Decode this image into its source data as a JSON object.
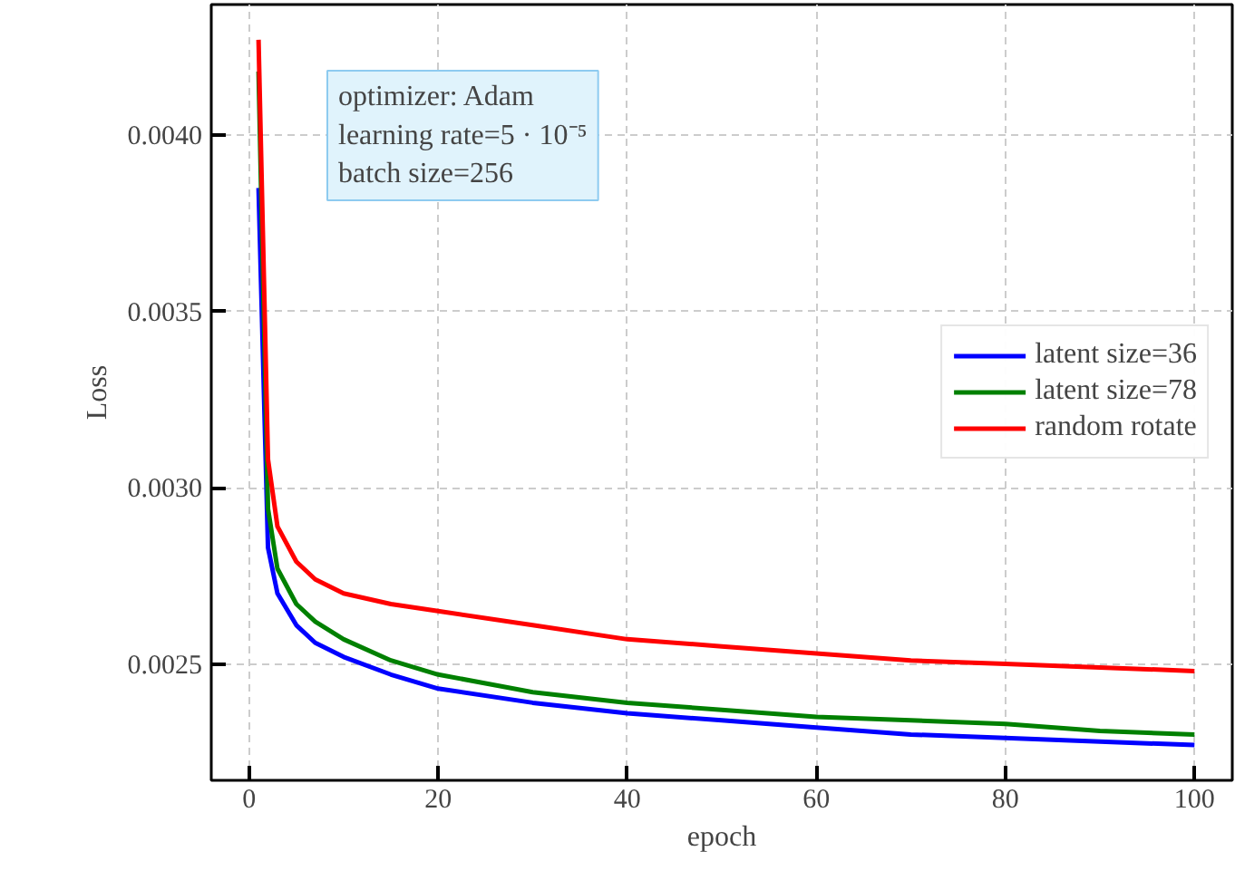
{
  "chart_data": {
    "type": "line",
    "xlabel": "epoch",
    "ylabel": "Loss",
    "x": [
      1,
      2,
      3,
      5,
      7,
      10,
      15,
      20,
      30,
      40,
      50,
      60,
      70,
      80,
      90,
      100
    ],
    "series": [
      {
        "name": "latent size=36",
        "color": "#0000ff",
        "values": [
          0.00385,
          0.00283,
          0.0027,
          0.00261,
          0.00256,
          0.00252,
          0.00247,
          0.00243,
          0.00239,
          0.00236,
          0.00234,
          0.00232,
          0.0023,
          0.00229,
          0.00228,
          0.00227
        ]
      },
      {
        "name": "latent size=78",
        "color": "#008000",
        "values": [
          0.00418,
          0.00294,
          0.00277,
          0.00267,
          0.00262,
          0.00257,
          0.00251,
          0.00247,
          0.00242,
          0.00239,
          0.00237,
          0.00235,
          0.00234,
          0.00233,
          0.00231,
          0.0023
        ]
      },
      {
        "name": "random rotate",
        "color": "#ff0000",
        "values": [
          0.00427,
          0.00308,
          0.00289,
          0.00279,
          0.00274,
          0.0027,
          0.00267,
          0.00265,
          0.00261,
          0.00257,
          0.00255,
          0.00253,
          0.00251,
          0.0025,
          0.00249,
          0.00248
        ]
      }
    ],
    "xlim": [
      -4,
      104
    ],
    "ylim": [
      0.00217,
      0.00437
    ],
    "xticks": [
      0,
      20,
      40,
      60,
      80,
      100
    ],
    "yticks": [
      {
        "value": 0.0025,
        "label": "0.0025"
      },
      {
        "value": 0.003,
        "label": "0.0030"
      },
      {
        "value": 0.0035,
        "label": "0.0035"
      },
      {
        "value": 0.004,
        "label": "0.0040"
      }
    ],
    "grid": true,
    "legend": "right",
    "line_style": "solid",
    "marker": "none",
    "annotations": [
      "optimizer: Adam\nlearning rate=5 · 10⁻⁵\nbatch size=256"
    ]
  }
}
